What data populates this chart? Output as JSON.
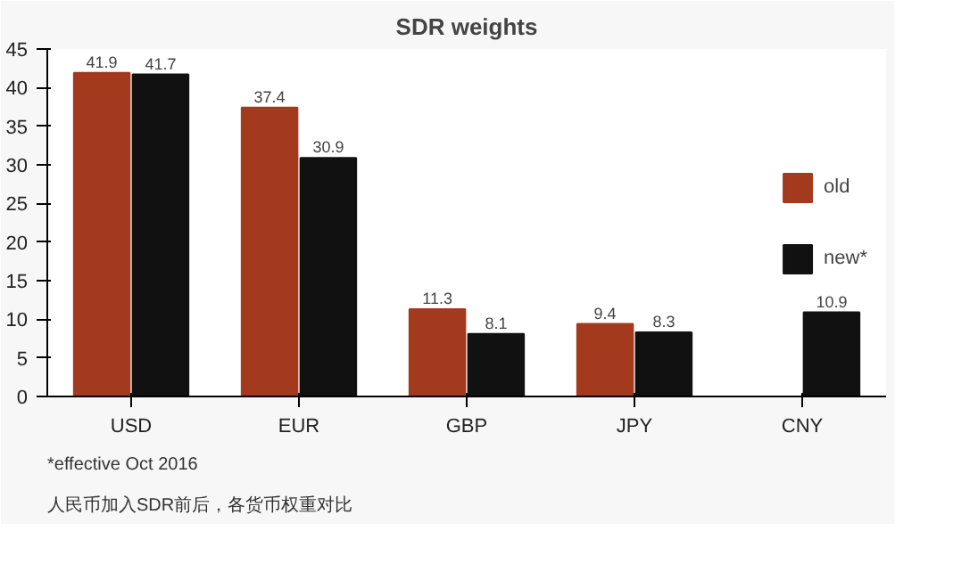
{
  "chart_data": {
    "type": "bar",
    "title": "SDR weights",
    "categories": [
      "USD",
      "EUR",
      "GBP",
      "JPY",
      "CNY"
    ],
    "series": [
      {
        "name": "old",
        "color": "#a33a1e",
        "values": [
          41.9,
          37.4,
          11.3,
          9.4,
          null
        ]
      },
      {
        "name": "new*",
        "color": "#111111",
        "values": [
          41.7,
          30.9,
          8.1,
          8.3,
          10.9
        ]
      }
    ],
    "ylim": [
      0,
      45
    ],
    "yticks": [
      0,
      5,
      10,
      15,
      20,
      25,
      30,
      35,
      40,
      45
    ],
    "data_labels": true,
    "legend": "right",
    "grid": false,
    "annotations": [
      "*effective Oct 2016",
      "人民币加入SDR前后，各货币权重对比"
    ]
  }
}
